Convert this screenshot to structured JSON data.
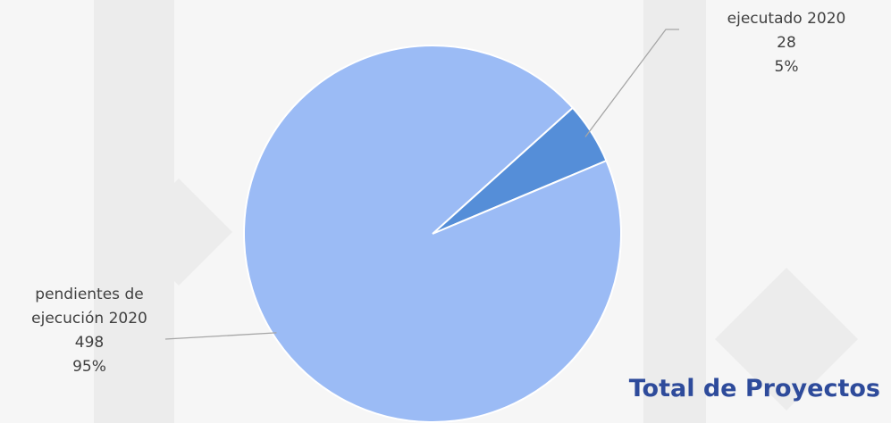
{
  "chart_data": {
    "type": "pie",
    "title": "Total de Proyectos",
    "categories": [
      "ejecutado 2020",
      "pendientes de ejecución 2020"
    ],
    "values": [
      28,
      498
    ],
    "percent_labels": [
      "5%",
      "95%"
    ],
    "colors": [
      "#558ed8",
      "#9bbbf5"
    ]
  }
}
